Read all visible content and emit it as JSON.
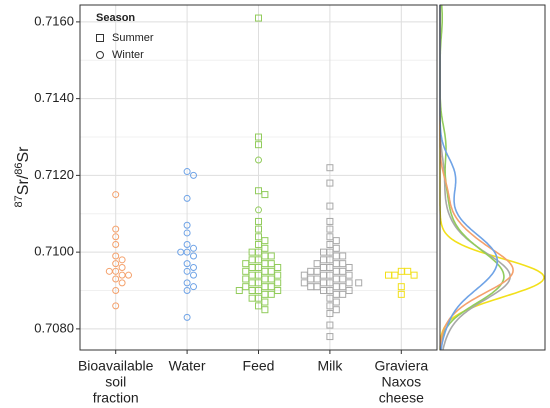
{
  "chart_data": {
    "type": "beeswarm",
    "y_label": {
      "mass1": "87",
      "element1": "Sr/",
      "mass2": "86",
      "element2": "Sr"
    },
    "categories": [
      [
        "Bioavailable",
        "soil",
        "fraction"
      ],
      [
        "Water"
      ],
      [
        "Feed"
      ],
      [
        "Milk"
      ],
      [
        "Graviera",
        "Naxos",
        "cheese"
      ]
    ],
    "colors": [
      "#f4a16c",
      "#6fa3e6",
      "#92cc5c",
      "#a8a8a8",
      "#f2e01a"
    ],
    "legend_title": "Season",
    "series": [
      {
        "name": "Summer",
        "shape": "square",
        "values": [
          [],
          [],
          [
            0.7161,
            0.713,
            0.7128,
            0.7116,
            0.7115,
            0.7108,
            0.7106,
            0.7104,
            0.7103,
            0.7102,
            0.7101,
            0.71,
            0.71,
            0.7099,
            0.7099,
            0.7098,
            0.7098,
            0.7097,
            0.7097,
            0.7097,
            0.7096,
            0.7096,
            0.7096,
            0.7095,
            0.7095,
            0.7095,
            0.7094,
            0.7094,
            0.7094,
            0.7093,
            0.7093,
            0.7093,
            0.7092,
            0.7092,
            0.7092,
            0.7091,
            0.7091,
            0.7091,
            0.709,
            0.709,
            0.709,
            0.709,
            0.7089,
            0.7089,
            0.7088,
            0.7088,
            0.7087,
            0.7086,
            0.7085
          ],
          [
            0.7122,
            0.7118,
            0.7112,
            0.7108,
            0.7106,
            0.7104,
            0.7103,
            0.7102,
            0.7101,
            0.71,
            0.71,
            0.7099,
            0.7099,
            0.7098,
            0.7098,
            0.7097,
            0.7097,
            0.7097,
            0.7096,
            0.7096,
            0.7096,
            0.7095,
            0.7095,
            0.7095,
            0.7095,
            0.7094,
            0.7094,
            0.7094,
            0.7094,
            0.7093,
            0.7093,
            0.7093,
            0.7093,
            0.7092,
            0.7092,
            0.7092,
            0.7092,
            0.7092,
            0.7091,
            0.7091,
            0.7091,
            0.7091,
            0.709,
            0.709,
            0.709,
            0.7089,
            0.7089,
            0.7088,
            0.7087,
            0.7086,
            0.7085,
            0.7084,
            0.7081,
            0.7078
          ],
          [
            0.7095,
            0.7095,
            0.7094,
            0.7094,
            0.7094,
            0.7091,
            0.7089
          ]
        ]
      },
      {
        "name": "Winter",
        "shape": "circle",
        "values": [
          [
            0.7115,
            0.7106,
            0.7104,
            0.7102,
            0.7099,
            0.7098,
            0.7097,
            0.7096,
            0.7095,
            0.7095,
            0.7094,
            0.7094,
            0.7093,
            0.7092,
            0.709,
            0.7086
          ],
          [
            0.7121,
            0.712,
            0.7114,
            0.7107,
            0.7105,
            0.7102,
            0.7101,
            0.71,
            0.71,
            0.7099,
            0.7097,
            0.7096,
            0.7095,
            0.7094,
            0.7092,
            0.7091,
            0.709,
            0.7083
          ],
          [
            0.7124,
            0.7111
          ],
          [],
          []
        ]
      }
    ],
    "ylim": [
      0.70745,
      0.71644
    ],
    "yticks": [
      {
        "value": 0.708,
        "label": "0.7080"
      },
      {
        "value": 0.71,
        "label": "0.7100"
      },
      {
        "value": 0.712,
        "label": "0.7120"
      },
      {
        "value": 0.714,
        "label": "0.7140"
      },
      {
        "value": 0.716,
        "label": "0.7160"
      }
    ],
    "minor_yticks": [
      0.709,
      0.711,
      0.713,
      0.715
    ],
    "grid": true,
    "marginal_density": true
  }
}
